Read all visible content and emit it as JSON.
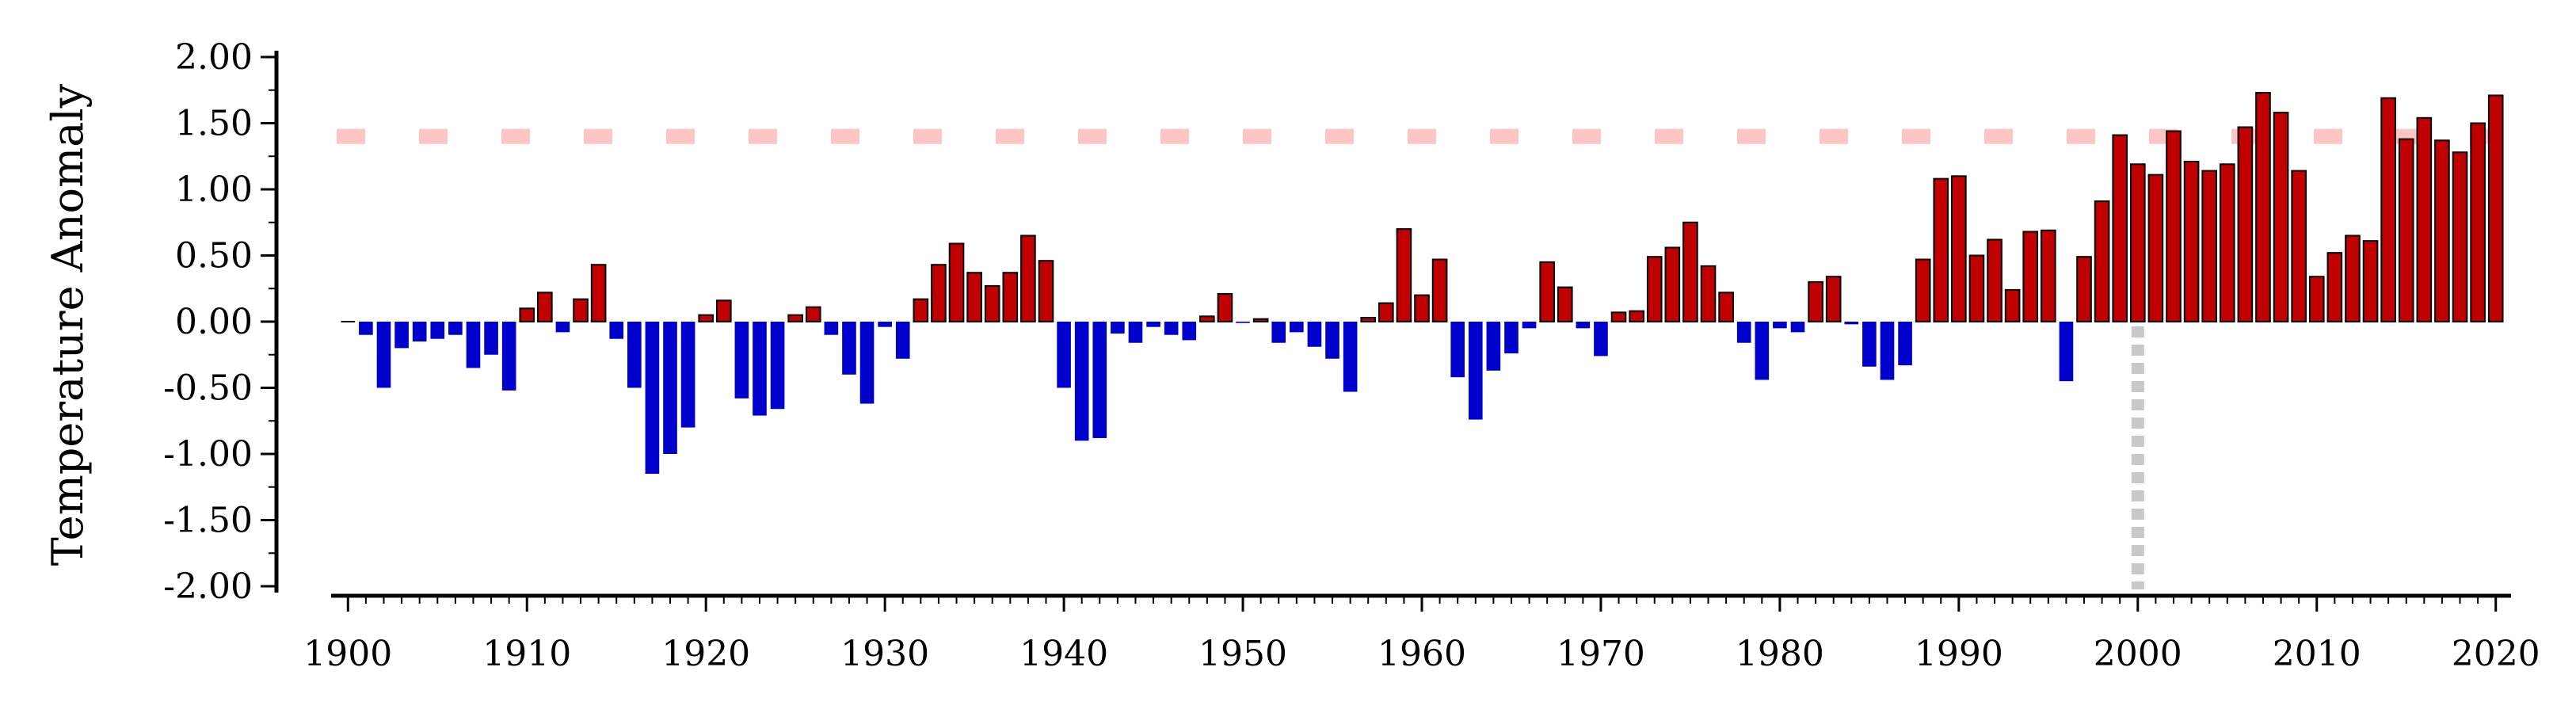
{
  "chart_data": {
    "type": "bar",
    "title": "",
    "xlabel": "",
    "ylabel": "Temperature Anomaly",
    "xlim": [
      1899.5,
      2020.5
    ],
    "ylim": [
      -2.0,
      2.0
    ],
    "x_ticks": [
      "1900",
      "1910",
      "1920",
      "1930",
      "1940",
      "1950",
      "1960",
      "1970",
      "1980",
      "1990",
      "2000",
      "2010",
      "2020"
    ],
    "y_ticks": [
      "2.00",
      "1.50",
      "1.00",
      "0.50",
      "0.00",
      "-0.50",
      "-1.00",
      "-1.50",
      "-2.00"
    ],
    "grid": false,
    "legend": "none",
    "colors": {
      "positive": "#c00000",
      "negative": "#0000cc",
      "threshold": "#ffc4c4",
      "marker": "#c8c8c8",
      "axis": "#000000"
    },
    "reference_line_y": 1.4,
    "reference_year": 2000,
    "x": [
      1900,
      1901,
      1902,
      1903,
      1904,
      1905,
      1906,
      1907,
      1908,
      1909,
      1910,
      1911,
      1912,
      1913,
      1914,
      1915,
      1916,
      1917,
      1918,
      1919,
      1920,
      1921,
      1922,
      1923,
      1924,
      1925,
      1926,
      1927,
      1928,
      1929,
      1930,
      1931,
      1932,
      1933,
      1934,
      1935,
      1936,
      1937,
      1938,
      1939,
      1940,
      1941,
      1942,
      1943,
      1944,
      1945,
      1946,
      1947,
      1948,
      1949,
      1950,
      1951,
      1952,
      1953,
      1954,
      1955,
      1956,
      1957,
      1958,
      1959,
      1960,
      1961,
      1962,
      1963,
      1964,
      1965,
      1966,
      1967,
      1968,
      1969,
      1970,
      1971,
      1972,
      1973,
      1974,
      1975,
      1976,
      1977,
      1978,
      1979,
      1980,
      1981,
      1982,
      1983,
      1984,
      1985,
      1986,
      1987,
      1988,
      1989,
      1990,
      1991,
      1992,
      1993,
      1994,
      1995,
      1996,
      1997,
      1998,
      1999,
      2000,
      2001,
      2002,
      2003,
      2004,
      2005,
      2006,
      2007,
      2008,
      2009,
      2010,
      2011,
      2012,
      2013,
      2014,
      2015,
      2016,
      2017,
      2018,
      2019,
      2020
    ],
    "values": [
      0.0,
      -0.1,
      -0.5,
      -0.2,
      -0.15,
      -0.13,
      -0.1,
      -0.35,
      -0.25,
      -0.52,
      0.1,
      0.22,
      -0.08,
      0.17,
      0.43,
      -0.13,
      -0.5,
      -1.15,
      -1.0,
      -0.8,
      0.05,
      0.16,
      -0.58,
      -0.71,
      -0.66,
      0.05,
      0.11,
      -0.1,
      -0.4,
      -0.62,
      -0.04,
      -0.28,
      0.17,
      0.43,
      0.59,
      0.37,
      0.27,
      0.37,
      0.65,
      0.46,
      -0.5,
      -0.9,
      -0.88,
      -0.09,
      -0.16,
      -0.04,
      -0.1,
      -0.14,
      0.04,
      0.21,
      -0.01,
      0.02,
      -0.16,
      -0.08,
      -0.19,
      -0.28,
      -0.53,
      0.03,
      0.14,
      0.7,
      0.2,
      0.47,
      -0.42,
      -0.74,
      -0.37,
      -0.24,
      -0.05,
      0.45,
      0.26,
      -0.05,
      -0.26,
      0.07,
      0.08,
      0.49,
      0.56,
      0.75,
      0.42,
      0.22,
      -0.16,
      -0.44,
      -0.05,
      -0.08,
      0.3,
      0.34,
      -0.02,
      -0.34,
      -0.44,
      -0.33,
      0.47,
      1.08,
      1.1,
      0.5,
      0.62,
      0.24,
      0.68,
      0.69,
      -0.45,
      0.49,
      0.91,
      1.41,
      1.19,
      1.11,
      1.44,
      1.21,
      1.14,
      1.19,
      1.47,
      1.73,
      1.58,
      1.14,
      0.34,
      0.52,
      0.65,
      0.61,
      1.69,
      1.38,
      1.54,
      1.37,
      1.28,
      1.5,
      1.71
    ]
  }
}
